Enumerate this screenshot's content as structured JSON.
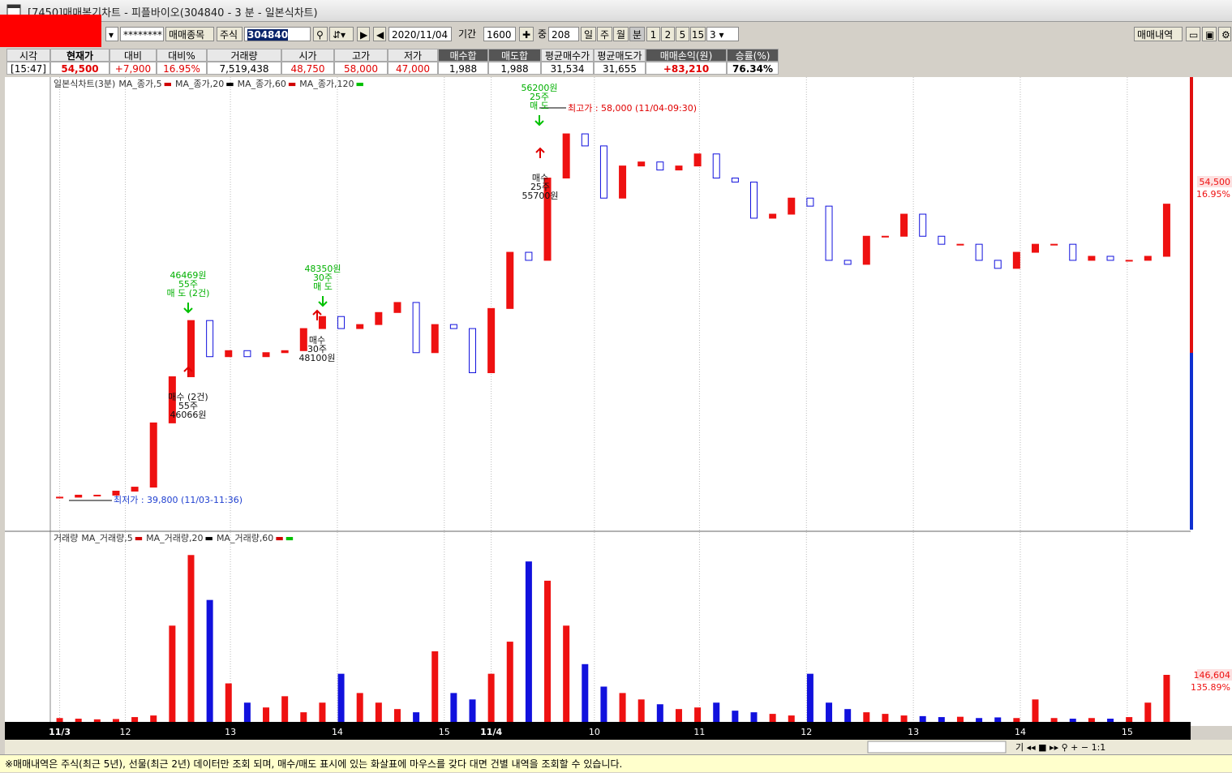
{
  "window": {
    "title": "[7450]매매복기차트 - 피플바이오(304840 - 3 분 - 일본식차트)"
  },
  "toolbar": {
    "password": "********",
    "pick_button": "매매종목",
    "market": "주식",
    "code": "304840",
    "date": "2020/11/04",
    "period_label": "기간",
    "period": "1600",
    "middle_label": "중",
    "middle": "208",
    "buttons": [
      "일",
      "주",
      "월",
      "분",
      "1",
      "2",
      "5",
      "15"
    ],
    "interval": "3",
    "history_button": "매매내역"
  },
  "summary": {
    "headers": [
      "시각",
      "현재가",
      "대비",
      "대비%",
      "거래량",
      "시가",
      "고가",
      "저가",
      "매수합",
      "매도합",
      "평균매수가",
      "평균매도가",
      "매매손익(원)",
      "승률(%)"
    ],
    "values": [
      "[15:47]",
      "54,500",
      "+7,900",
      "16.95%",
      "7,519,438",
      "48,750",
      "58,000",
      "47,000",
      "1,988",
      "1,988",
      "31,534",
      "31,655",
      "+83,210",
      "76.34%"
    ]
  },
  "chart_data": [
    {
      "type": "candlestick",
      "title": "일본식차트(3분)",
      "legend": [
        {
          "name": "MA_종가,5",
          "color": "#d00000"
        },
        {
          "name": "MA_종가,20",
          "color": "#000000"
        },
        {
          "name": "MA_종가,60",
          "color": "#d00000"
        },
        {
          "name": "MA_종가,120",
          "color": "#00c000"
        }
      ],
      "closes": [
        39900,
        40000,
        40000,
        40200,
        40400,
        43600,
        45900,
        48700,
        46900,
        47200,
        46900,
        47100,
        47200,
        48300,
        48900,
        48300,
        48500,
        49100,
        49600,
        47100,
        48500,
        48300,
        46100,
        49300,
        52100,
        51700,
        55800,
        58000,
        57400,
        54800,
        56400,
        56600,
        56200,
        56400,
        57000,
        55800,
        55600,
        53800,
        54000,
        54800,
        54400,
        51700,
        51500,
        52900,
        52900,
        54000,
        52900,
        52500,
        52500,
        51700,
        51300,
        52100,
        52500,
        52500,
        51700,
        51900,
        51700,
        51700,
        51900,
        54500
      ],
      "ylim": [
        38200,
        60750
      ],
      "xlim": [
        -0.5,
        59.5
      ],
      "xticks": [
        {
          "value": 0,
          "label": "11/3"
        },
        {
          "value": 3.5,
          "label": "12"
        },
        {
          "value": 9.1,
          "label": "13"
        },
        {
          "value": 14.8,
          "label": "14"
        },
        {
          "value": 20.5,
          "label": "15"
        },
        {
          "value": 23,
          "label": "11/4"
        },
        {
          "value": 28.5,
          "label": "10"
        },
        {
          "value": 34.1,
          "label": "11"
        },
        {
          "value": 39.8,
          "label": "12"
        },
        {
          "value": 45.5,
          "label": "13"
        },
        {
          "value": 51.2,
          "label": "14"
        },
        {
          "value": 56.9,
          "label": "15"
        }
      ],
      "up_color": "#ee1111",
      "down_color": "#1111dd",
      "last_label": "54,500",
      "last_change": "16.95%",
      "high_note": "최고가 : 58,000 (11/04-09:30)",
      "low_note": "최저가 : 39,800 (11/03-11:36)",
      "trade_marks": [
        {
          "side": "sell",
          "lines": [
            "46469원",
            "55주",
            "매 도 (2건)"
          ]
        },
        {
          "side": "buy",
          "lines": [
            "매수 (2건)",
            "55주",
            "46066원"
          ]
        },
        {
          "side": "sell",
          "lines": [
            "48350원",
            "30주",
            "매 도"
          ]
        },
        {
          "side": "buy",
          "lines": [
            "매수",
            "30주",
            "48100원"
          ]
        },
        {
          "side": "sell",
          "lines": [
            "56200원",
            "25주",
            "매 도"
          ]
        },
        {
          "side": "buy",
          "lines": [
            "매수",
            "25주",
            "55700원"
          ]
        }
      ]
    },
    {
      "type": "bar",
      "title": "거래량",
      "legend": [
        {
          "name": "MA_거래량,5",
          "color": "#d00000"
        },
        {
          "name": "MA_거래량,20",
          "color": "#000000"
        },
        {
          "name": "MA_거래량,60",
          "color": "#d00000"
        },
        {
          "name": "",
          "color": "#00c000"
        }
      ],
      "values": [
        12000,
        10000,
        8000,
        9000,
        15000,
        20000,
        300000,
        520000,
        380000,
        120000,
        60000,
        45000,
        80000,
        30000,
        60000,
        150000,
        90000,
        60000,
        40000,
        30000,
        220000,
        90000,
        70000,
        150000,
        250000,
        500000,
        440000,
        300000,
        180000,
        110000,
        90000,
        70000,
        55000,
        40000,
        45000,
        60000,
        35000,
        30000,
        25000,
        20000,
        150000,
        60000,
        40000,
        30000,
        25000,
        20000,
        18000,
        15000,
        16000,
        12000,
        14000,
        12000,
        70000,
        12000,
        10000,
        12000,
        10000,
        15000,
        60000,
        146604
      ],
      "ylim": [
        0,
        594000
      ],
      "last_label": "146,604",
      "last_change": "135.89%"
    }
  ],
  "status": "※매매내역은 주식(최근 5년), 선물(최근 2년) 데이터만 조회 되며, 매수/매도 표시에 있는 화살표에 마우스를 갖다 대면 건별 내역을 조회할 수 있습니다."
}
